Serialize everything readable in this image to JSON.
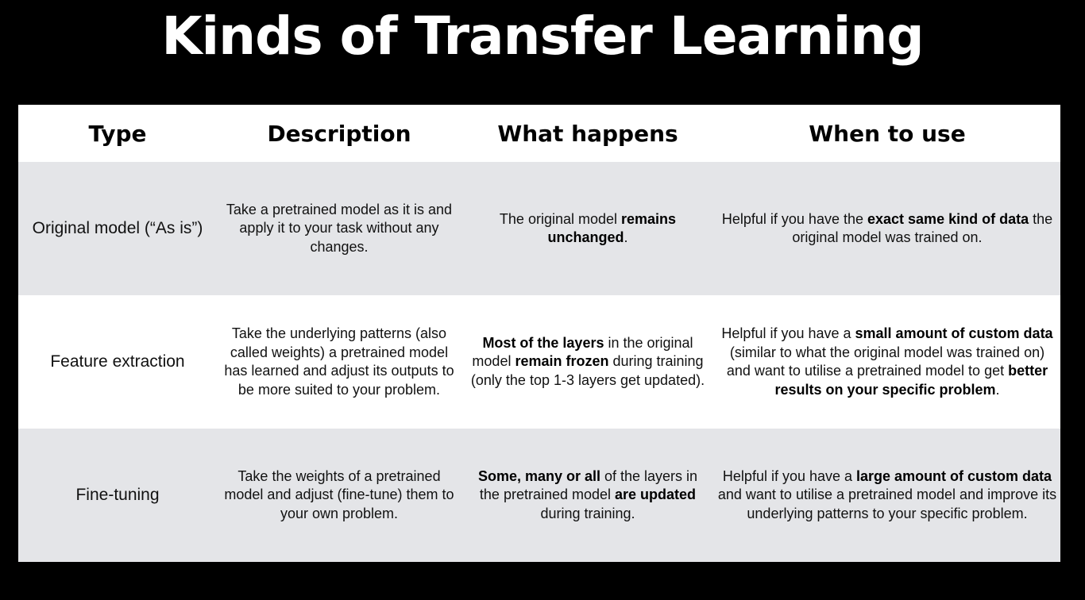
{
  "title": "Kinds of Transfer Learning",
  "headers": [
    "Type",
    "Description",
    "What happens",
    "When to use"
  ],
  "rows": [
    {
      "type": "Original model (“As is”)",
      "description": [
        {
          "text": "Take a pretrained model as it is and apply it to your task without any changes."
        }
      ],
      "what_happens": [
        {
          "text": "The original model "
        },
        {
          "text": "remains unchanged",
          "bold": true
        },
        {
          "text": "."
        }
      ],
      "when_to_use": [
        {
          "text": "Helpful if you have the "
        },
        {
          "text": "exact same kind of data",
          "bold": true
        },
        {
          "text": " the original model was trained on."
        }
      ]
    },
    {
      "type": "Feature extraction",
      "description": [
        {
          "text": "Take the underlying patterns (also called weights) a pretrained model has learned and adjust its outputs to be more suited to your problem."
        }
      ],
      "what_happens": [
        {
          "text": "Most of the layers",
          "bold": true
        },
        {
          "text": " in the original model "
        },
        {
          "text": "remain frozen",
          "bold": true
        },
        {
          "text": " during training (only the top 1-3 layers get updated)."
        }
      ],
      "when_to_use": [
        {
          "text": "Helpful if you have a "
        },
        {
          "text": "small amount of custom data",
          "bold": true
        },
        {
          "text": " (similar to what the original model was trained on) and want to utilise a pretrained model to get "
        },
        {
          "text": "better results on your specific problem",
          "bold": true
        },
        {
          "text": "."
        }
      ]
    },
    {
      "type": "Fine-tuning",
      "description": [
        {
          "text": "Take the weights of a pretrained model and adjust (fine-tune) them to your own problem."
        }
      ],
      "what_happens": [
        {
          "text": "Some, many or all",
          "bold": true
        },
        {
          "text": " of the layers in the pretrained model "
        },
        {
          "text": "are updated",
          "bold": true
        },
        {
          "text": " during training."
        }
      ],
      "when_to_use": [
        {
          "text": "Helpful if you have a "
        },
        {
          "text": "large amount of custom data",
          "bold": true
        },
        {
          "text": " and want to utilise a pretrained model and improve its underlying patterns to your specific problem."
        }
      ]
    }
  ]
}
